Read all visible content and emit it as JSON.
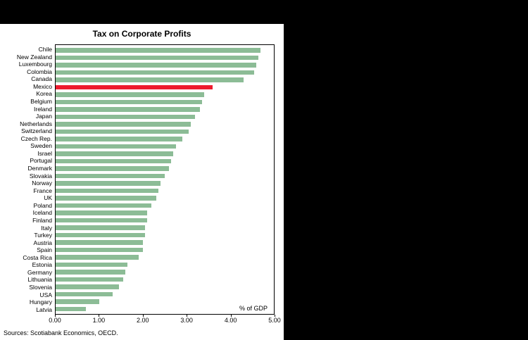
{
  "window": {
    "background_color": "#000000",
    "panel_color": "#ffffff"
  },
  "chart": {
    "title": "Tax on Corporate Profits",
    "axis_note": "% of GDP",
    "footer": "Sources: Scotiabank Economics, OECD.",
    "bar_color": "#8cbc96",
    "highlight_color": "#ed1c2e",
    "x_ticks": [
      "0.00",
      "1.00",
      "2.00",
      "3.00",
      "4.00",
      "5.00"
    ]
  },
  "chart_data": {
    "type": "bar",
    "orientation": "horizontal",
    "title": "Tax on Corporate Profits",
    "xlabel": "% of GDP",
    "ylabel": "",
    "xlim": [
      0,
      5
    ],
    "grid": false,
    "legend": false,
    "highlight_category": "Mexico",
    "categories": [
      "Chile",
      "New Zealand",
      "Luxembourg",
      "Colombia",
      "Canada",
      "Mexico",
      "Korea",
      "Belgium",
      "Ireland",
      "Japan",
      "Netherlands",
      "Switzerland",
      "Czech Rep.",
      "Sweden",
      "Israel",
      "Portugal",
      "Denmark",
      "Slovakia",
      "Norway",
      "France",
      "UK",
      "Poland",
      "Iceland",
      "Finland",
      "Italy",
      "Turkey",
      "Austria",
      "Spain",
      "Costa Rica",
      "Estonia",
      "Germany",
      "Lithuania",
      "Slovenia",
      "USA",
      "Hungary",
      "Latvia"
    ],
    "values": [
      4.7,
      4.65,
      4.6,
      4.55,
      4.3,
      3.6,
      3.4,
      3.35,
      3.3,
      3.2,
      3.1,
      3.05,
      2.9,
      2.75,
      2.7,
      2.65,
      2.6,
      2.5,
      2.4,
      2.35,
      2.3,
      2.2,
      2.1,
      2.1,
      2.05,
      2.05,
      2.0,
      2.0,
      1.9,
      1.65,
      1.6,
      1.55,
      1.45,
      1.3,
      1.0,
      0.7
    ]
  }
}
